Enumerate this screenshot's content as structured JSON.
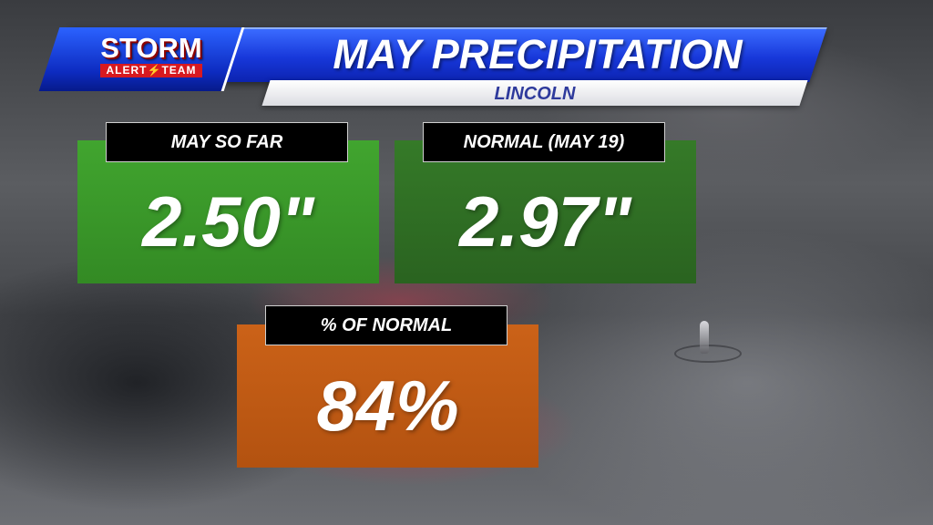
{
  "header": {
    "logo_top": "STORM",
    "logo_bottom_left": "ALERT",
    "logo_bolt": "⚡",
    "logo_bottom_right": "TEAM",
    "title": "MAY PRECIPITATION",
    "subtitle": "LINCOLN"
  },
  "panels": {
    "so_far": {
      "label": "MAY SO FAR",
      "value": "2.50\"",
      "color": "#3a9a2a"
    },
    "normal": {
      "label": "NORMAL (MAY 19)",
      "value": "2.97\"",
      "color": "#2f6e24"
    },
    "percent": {
      "label": "% OF NORMAL",
      "value": "84%",
      "color": "#c45a12"
    }
  }
}
